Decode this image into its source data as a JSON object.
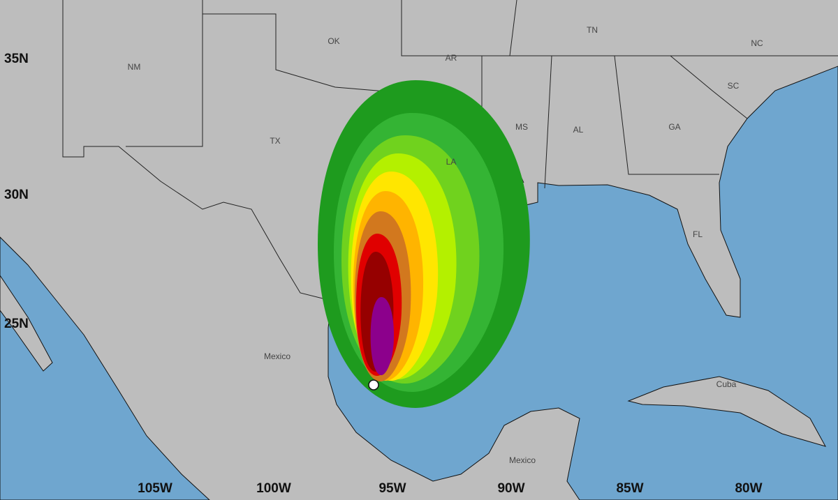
{
  "latitude_labels": [
    "35N",
    "30N",
    "25N"
  ],
  "longitude_labels": [
    "105W",
    "100W",
    "95W",
    "90W",
    "85W",
    "80W"
  ],
  "place_labels": [
    "NM",
    "OK",
    "AR",
    "TN",
    "NC",
    "TX",
    "MS",
    "AL",
    "GA",
    "SC",
    "LA",
    "FL",
    "Mexico",
    "Cuba",
    "Mexico"
  ]
}
